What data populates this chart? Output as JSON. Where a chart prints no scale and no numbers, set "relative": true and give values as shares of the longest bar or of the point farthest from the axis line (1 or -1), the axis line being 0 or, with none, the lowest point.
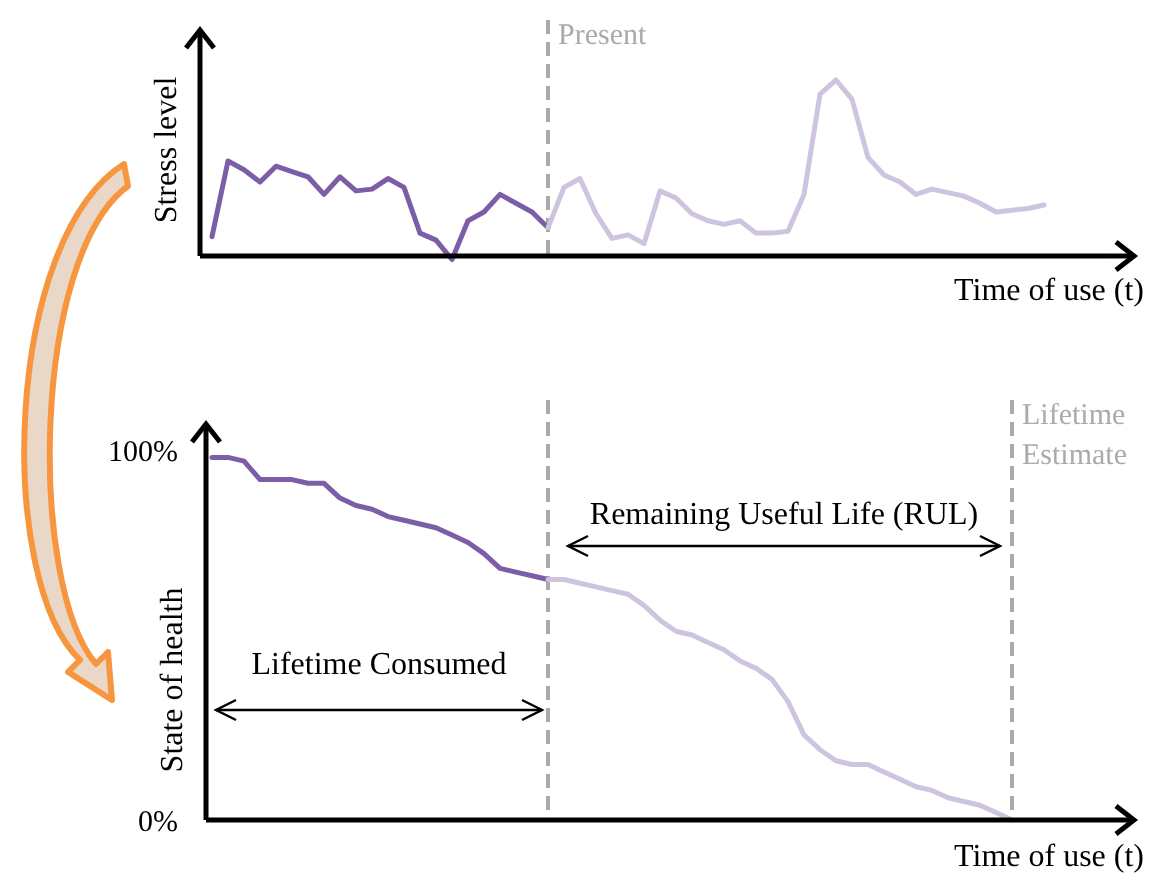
{
  "chart_data": [
    {
      "type": "line",
      "ylabel": "Stress level",
      "xlabel": "Time of use (t)",
      "relative": true,
      "tick_labels": false,
      "categories": [
        null,
        null,
        null,
        null,
        null,
        null,
        null,
        null,
        null,
        null,
        null,
        null,
        null,
        null,
        null,
        null,
        null,
        null,
        null,
        null,
        null,
        null,
        null,
        null,
        null,
        null,
        null,
        null,
        null,
        null,
        null,
        null,
        null,
        null,
        null,
        null,
        null,
        null,
        null,
        null,
        null,
        null,
        null,
        null,
        null,
        null,
        null,
        null,
        null,
        null,
        null,
        null,
        null,
        null,
        null,
        null,
        null
      ],
      "series": [
        {
          "color": "#7b5ea7",
          "values": [
            0.11,
            0.54,
            0.49,
            0.42,
            0.51,
            0.48,
            0.45,
            0.35,
            0.45,
            0.37,
            0.38,
            0.44,
            0.39,
            0.13,
            0.09,
            -0.02,
            0.2,
            0.25,
            0.35,
            0.3,
            0.25,
            0.16,
            null,
            null,
            null,
            null,
            null,
            null,
            null,
            null,
            null,
            null,
            null,
            null,
            null,
            null,
            null,
            null,
            null,
            null,
            null,
            null,
            null,
            null,
            null,
            null,
            null,
            null,
            null,
            null,
            null,
            null,
            null,
            null,
            null,
            null,
            null
          ]
        },
        {
          "color": "#cfc4e0",
          "values": [
            null,
            null,
            null,
            null,
            null,
            null,
            null,
            null,
            null,
            null,
            null,
            null,
            null,
            null,
            null,
            null,
            null,
            null,
            null,
            null,
            null,
            0.16,
            0.39,
            0.44,
            0.24,
            0.1,
            0.12,
            0.07,
            0.37,
            0.33,
            0.24,
            0.2,
            0.18,
            0.2,
            0.13,
            0.13,
            0.14,
            0.35,
            0.92,
            1,
            0.89,
            0.56,
            0.46,
            0.42,
            0.35,
            0.38,
            0.36,
            0.34,
            0.3,
            0.25,
            0.26,
            0.27,
            0.29,
            null,
            null,
            null,
            null
          ]
        }
      ],
      "annotations": [
        "Present"
      ]
    },
    {
      "type": "line",
      "ylabel": "State of health",
      "xlabel": "Time of use (t)",
      "tick_labels": "y",
      "ylim": [
        0,
        100
      ],
      "yticks": [
        {
          "value": 0,
          "label": "0%"
        },
        {
          "value": 100,
          "label": "100%"
        }
      ],
      "categories": [
        null,
        null,
        null,
        null,
        null,
        null,
        null,
        null,
        null,
        null,
        null,
        null,
        null,
        null,
        null,
        null,
        null,
        null,
        null,
        null,
        null,
        null,
        null,
        null,
        null,
        null,
        null,
        null,
        null,
        null,
        null,
        null,
        null,
        null,
        null,
        null,
        null,
        null,
        null,
        null,
        null,
        null,
        null,
        null,
        null,
        null,
        null,
        null,
        null,
        null,
        null,
        null,
        null,
        null,
        null,
        null,
        null
      ],
      "series": [
        {
          "color": "#7b5ea7",
          "values": [
            98,
            98,
            97,
            92,
            92,
            92,
            91,
            91,
            87,
            85,
            84,
            82,
            81,
            80,
            79,
            77,
            75,
            72,
            68,
            67,
            66,
            65,
            null,
            null,
            null,
            null,
            null,
            null,
            null,
            null,
            null,
            null,
            null,
            null,
            null,
            null,
            null,
            null,
            null,
            null,
            null,
            null,
            null,
            null,
            null,
            null,
            null,
            null,
            null,
            null,
            null,
            null,
            null,
            null,
            null,
            null,
            null
          ]
        },
        {
          "color": "#cfc4e0",
          "values": [
            null,
            null,
            null,
            null,
            null,
            null,
            null,
            null,
            null,
            null,
            null,
            null,
            null,
            null,
            null,
            null,
            null,
            null,
            null,
            null,
            null,
            65,
            65,
            64,
            63,
            62,
            61,
            58,
            54,
            51,
            50,
            48,
            46,
            43,
            41,
            38,
            32,
            23,
            19,
            16,
            15,
            15,
            13,
            11,
            9,
            8,
            6,
            5,
            4,
            2,
            0,
            null,
            null,
            null,
            null,
            null,
            null
          ]
        }
      ],
      "annotations": [
        "Remaining Useful Life (RUL)",
        "Lifetime Consumed",
        "Lifetime Estimate"
      ]
    }
  ]
}
